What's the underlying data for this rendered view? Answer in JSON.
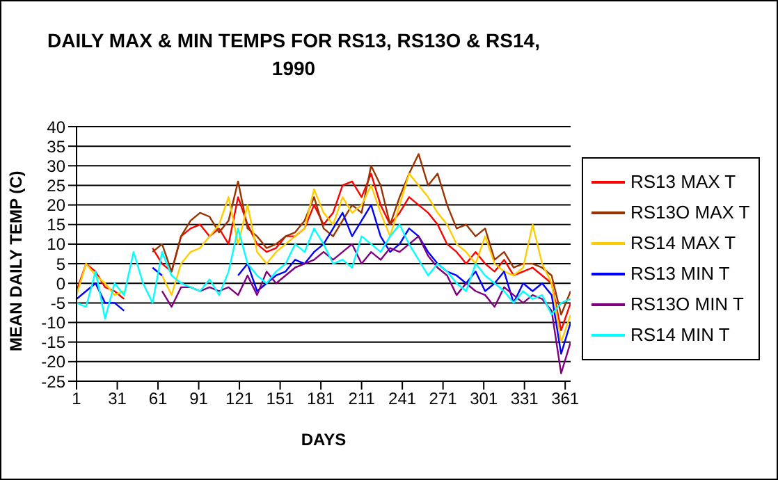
{
  "chart_data": {
    "type": "line",
    "title": "DAILY MAX & MIN TEMPS FOR RS13, RS13O & RS14, 1990",
    "xlabel": "DAYS",
    "ylabel": "MEAN DAILY TEMP (C)",
    "x": [
      1,
      8,
      15,
      22,
      29,
      36,
      43,
      50,
      57,
      64,
      71,
      78,
      85,
      92,
      99,
      106,
      113,
      120,
      127,
      134,
      141,
      148,
      155,
      162,
      169,
      176,
      183,
      190,
      197,
      204,
      211,
      218,
      225,
      232,
      239,
      246,
      253,
      260,
      267,
      274,
      281,
      288,
      295,
      302,
      309,
      316,
      323,
      330,
      337,
      344,
      351,
      358,
      365
    ],
    "xlim": [
      1,
      365
    ],
    "xticks": [
      1,
      31,
      61,
      91,
      121,
      151,
      181,
      211,
      241,
      271,
      301,
      331,
      361
    ],
    "ylim": [
      -25,
      40
    ],
    "yticks": [
      -25,
      -20,
      -15,
      -10,
      -5,
      0,
      5,
      10,
      15,
      20,
      25,
      30,
      35,
      40
    ],
    "grid": "y",
    "legend": "right",
    "marker": "none",
    "line_style": "solid",
    "series": [
      {
        "name": "RS13 MAX T",
        "color": "#ff0000",
        "values": [
          -2,
          5,
          3,
          -1,
          -2,
          -4,
          null,
          null,
          9,
          5,
          3,
          12,
          14,
          15,
          12,
          14,
          10,
          22,
          15,
          10,
          8,
          9,
          12,
          12,
          14,
          20,
          15,
          18,
          25,
          26,
          22,
          28,
          20,
          15,
          18,
          22,
          20,
          18,
          15,
          10,
          8,
          5,
          8,
          5,
          3,
          6,
          2,
          3,
          4,
          2,
          0,
          -12,
          -5
        ]
      },
      {
        "name": "RS13O MAX T",
        "color": "#993300",
        "values": [
          null,
          null,
          null,
          null,
          null,
          null,
          null,
          null,
          8,
          10,
          3,
          12,
          16,
          18,
          17,
          13,
          16,
          26,
          14,
          12,
          9,
          10,
          12,
          13,
          16,
          22,
          14,
          12,
          16,
          20,
          18,
          30,
          25,
          15,
          22,
          28,
          33,
          25,
          28,
          20,
          14,
          15,
          12,
          14,
          6,
          8,
          4,
          5,
          5,
          4,
          2,
          -8,
          -2
        ]
      },
      {
        "name": "RS14 MAX T",
        "color": "#ffcc00",
        "values": [
          -3,
          5,
          2,
          0,
          -3,
          -2,
          null,
          null,
          null,
          2,
          -3,
          5,
          8,
          9,
          12,
          15,
          22,
          10,
          20,
          8,
          5,
          8,
          10,
          12,
          14,
          24,
          18,
          15,
          22,
          18,
          20,
          25,
          18,
          12,
          20,
          28,
          25,
          22,
          18,
          15,
          10,
          8,
          5,
          12,
          5,
          3,
          2,
          4,
          15,
          5,
          0,
          -15,
          -8
        ]
      },
      {
        "name": "RS13 MIN T",
        "color": "#0000ff",
        "values": [
          -4,
          -2,
          0,
          -5,
          -5,
          -7,
          null,
          null,
          4,
          2,
          null,
          null,
          null,
          null,
          null,
          null,
          null,
          2,
          5,
          -2,
          0,
          2,
          3,
          6,
          5,
          8,
          10,
          14,
          18,
          12,
          16,
          20,
          12,
          8,
          10,
          14,
          12,
          8,
          5,
          3,
          2,
          0,
          3,
          -2,
          0,
          3,
          -5,
          0,
          -2,
          0,
          -3,
          -18,
          -10
        ]
      },
      {
        "name": "RS13O MIN T",
        "color": "#800080",
        "values": [
          null,
          null,
          null,
          null,
          null,
          null,
          null,
          null,
          null,
          -2,
          -6,
          -1,
          -1,
          -2,
          -1,
          -2,
          -1,
          -3,
          2,
          -3,
          3,
          0,
          2,
          4,
          5,
          6,
          8,
          6,
          8,
          10,
          5,
          8,
          6,
          9,
          8,
          10,
          12,
          7,
          4,
          2,
          -3,
          0,
          -2,
          -3,
          -6,
          -1,
          -3,
          -5,
          -3,
          -4,
          -7,
          -23,
          -15
        ]
      },
      {
        "name": "RS14 MIN T",
        "color": "#00ffff",
        "values": [
          -5,
          -6,
          3,
          -9,
          0,
          -3,
          8,
          0,
          -5,
          8,
          2,
          0,
          -1,
          -2,
          1,
          -3,
          3,
          14,
          5,
          2,
          0,
          3,
          5,
          10,
          8,
          14,
          10,
          5,
          6,
          4,
          12,
          10,
          8,
          12,
          15,
          10,
          6,
          2,
          5,
          3,
          0,
          -2,
          5,
          2,
          0,
          -2,
          -5,
          -2,
          -4,
          -3,
          -8,
          -5,
          -4
        ]
      }
    ]
  }
}
